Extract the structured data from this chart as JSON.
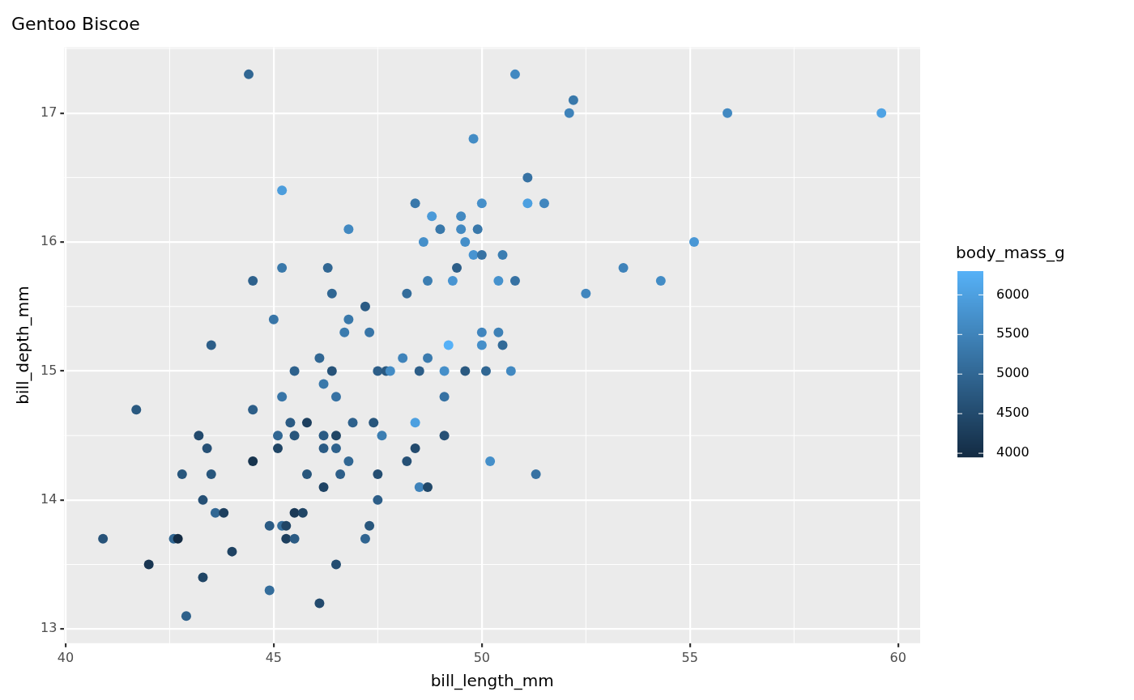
{
  "chart_data": {
    "type": "scatter",
    "title": "Gentoo Biscoe",
    "xlabel": "bill_length_mm",
    "ylabel": "bill_depth_mm",
    "clabel": "body_mass_g",
    "xlim": [
      39.97,
      60.53
    ],
    "ylim": [
      12.89,
      17.51
    ],
    "xticks": [
      40,
      45,
      50,
      55,
      60
    ],
    "yticks": [
      13,
      14,
      15,
      16,
      17
    ],
    "grid": true,
    "marker": "circle",
    "clim": [
      3950,
      6300
    ],
    "cticks": [
      4000,
      4500,
      5000,
      5500,
      6000
    ],
    "series": [
      {
        "x": [
          44.4,
          50.8,
          52.2,
          52.1,
          55.9,
          59.6,
          49.8,
          51.1,
          45.2,
          48.4,
          50.0,
          51.1,
          51.5,
          48.8,
          49.5,
          46.8,
          49.0,
          49.5,
          49.9,
          48.6,
          49.6,
          55.1,
          49.8,
          50.0,
          50.5,
          45.2,
          46.3,
          49.4,
          53.4,
          44.5,
          48.7,
          49.3,
          50.4,
          50.8,
          54.3,
          46.4,
          48.2,
          52.5,
          47.2,
          45.0,
          46.8,
          46.7,
          47.3,
          50.0,
          50.4,
          43.5,
          49.2,
          50.0,
          50.5,
          46.1,
          48.1,
          48.7,
          45.5,
          46.4,
          47.5,
          47.7,
          47.8,
          48.5,
          49.1,
          49.6,
          50.1,
          50.7,
          46.2,
          45.2,
          46.5,
          49.1,
          41.7,
          44.5,
          45.4,
          45.8,
          46.9,
          47.4,
          48.4,
          43.2,
          45.1,
          45.5,
          46.2,
          46.5,
          47.6,
          49.1,
          43.4,
          45.1,
          46.2,
          46.5,
          48.4,
          44.5,
          46.8,
          48.2,
          50.2,
          42.8,
          43.5,
          45.8,
          46.6,
          47.5,
          51.3,
          46.2,
          48.5,
          48.7,
          43.3,
          47.5,
          43.6,
          43.8,
          45.5,
          45.7,
          44.9,
          45.2,
          45.3,
          47.3,
          40.9,
          42.6,
          42.7,
          45.3,
          45.5,
          47.2,
          44.0,
          42.0,
          46.5,
          43.3,
          44.9,
          46.1,
          42.9
        ],
        "values": [
          17.3,
          17.3,
          17.1,
          17.0,
          17.0,
          17.0,
          16.8,
          16.5,
          16.4,
          16.3,
          16.3,
          16.3,
          16.3,
          16.2,
          16.2,
          16.1,
          16.1,
          16.1,
          16.1,
          16.0,
          16.0,
          16.0,
          15.9,
          15.9,
          15.9,
          15.8,
          15.8,
          15.8,
          15.8,
          15.7,
          15.7,
          15.7,
          15.7,
          15.7,
          15.7,
          15.6,
          15.6,
          15.6,
          15.5,
          15.4,
          15.4,
          15.3,
          15.3,
          15.3,
          15.3,
          15.2,
          15.2,
          15.2,
          15.2,
          15.1,
          15.1,
          15.1,
          15.0,
          15.0,
          15.0,
          15.0,
          15.0,
          15.0,
          15.0,
          15.0,
          15.0,
          15.0,
          14.9,
          14.8,
          14.8,
          14.8,
          14.7,
          14.7,
          14.6,
          14.6,
          14.6,
          14.6,
          14.6,
          14.5,
          14.5,
          14.5,
          14.5,
          14.5,
          14.5,
          14.5,
          14.4,
          14.4,
          14.4,
          14.4,
          14.4,
          14.3,
          14.3,
          14.3,
          14.3,
          14.2,
          14.2,
          14.2,
          14.2,
          14.2,
          14.2,
          14.1,
          14.1,
          14.1,
          14.0,
          14.0,
          13.9,
          13.9,
          13.9,
          13.9,
          13.8,
          13.8,
          13.8,
          13.8,
          13.7,
          13.7,
          13.7,
          13.7,
          13.7,
          13.7,
          13.6,
          13.5,
          13.5,
          13.4,
          13.3,
          13.2,
          13.1
        ],
        "cvalues": [
          5000,
          5600,
          5300,
          5500,
          5600,
          6050,
          5650,
          5200,
          5950,
          5300,
          5700,
          6000,
          5550,
          5900,
          5600,
          5600,
          5300,
          5600,
          5300,
          5700,
          5700,
          5850,
          5800,
          5200,
          5400,
          5300,
          5000,
          4850,
          5500,
          4900,
          5400,
          5800,
          5750,
          5200,
          5650,
          5000,
          5100,
          5550,
          4800,
          5250,
          5300,
          5350,
          5250,
          5550,
          5450,
          4850,
          6300,
          5700,
          5050,
          5000,
          5500,
          5350,
          4900,
          4650,
          4850,
          4750,
          5650,
          4850,
          5700,
          4750,
          5000,
          5600,
          5300,
          5250,
          5200,
          5200,
          4750,
          4850,
          4800,
          4300,
          4900,
          4700,
          6000,
          4500,
          5000,
          4700,
          4800,
          4400,
          5400,
          4600,
          4600,
          4400,
          4800,
          4900,
          4500,
          4100,
          5000,
          4600,
          5700,
          4700,
          4700,
          4700,
          4850,
          4550,
          5200,
          4375,
          5500,
          4450,
          4600,
          4850,
          5000,
          4300,
          4200,
          4400,
          4800,
          5100,
          4400,
          4700,
          4650,
          5000,
          3950,
          4300,
          4800,
          4950,
          4350,
          4150,
          4550,
          4400,
          5100,
          4500,
          4875
        ]
      }
    ]
  }
}
